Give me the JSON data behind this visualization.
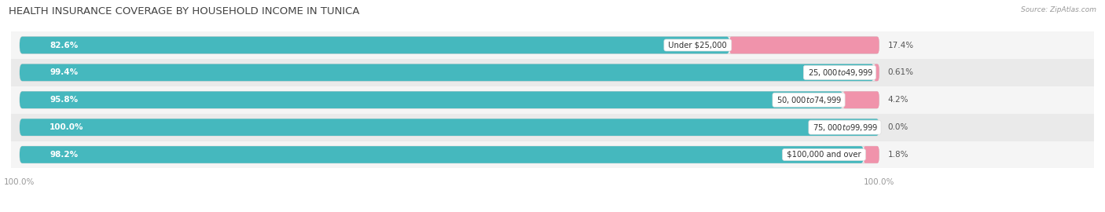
{
  "title": "HEALTH INSURANCE COVERAGE BY HOUSEHOLD INCOME IN TUNICA",
  "source": "Source: ZipAtlas.com",
  "categories": [
    "Under $25,000",
    "$25,000 to $49,999",
    "$50,000 to $74,999",
    "$75,000 to $99,999",
    "$100,000 and over"
  ],
  "with_coverage": [
    82.6,
    99.4,
    95.8,
    100.0,
    98.2
  ],
  "without_coverage": [
    17.4,
    0.61,
    4.2,
    0.0,
    1.8
  ],
  "with_coverage_color": "#45B8BE",
  "without_coverage_color": "#F093AB",
  "row_bg_light": "#F5F5F5",
  "row_bg_dark": "#EAEAEA",
  "title_fontsize": 9.5,
  "label_fontsize": 7.5,
  "tick_fontsize": 7.5,
  "bar_height": 0.62,
  "total_width": 100.0,
  "figsize": [
    14.06,
    2.7
  ],
  "dpi": 100,
  "xlim_right": 125
}
